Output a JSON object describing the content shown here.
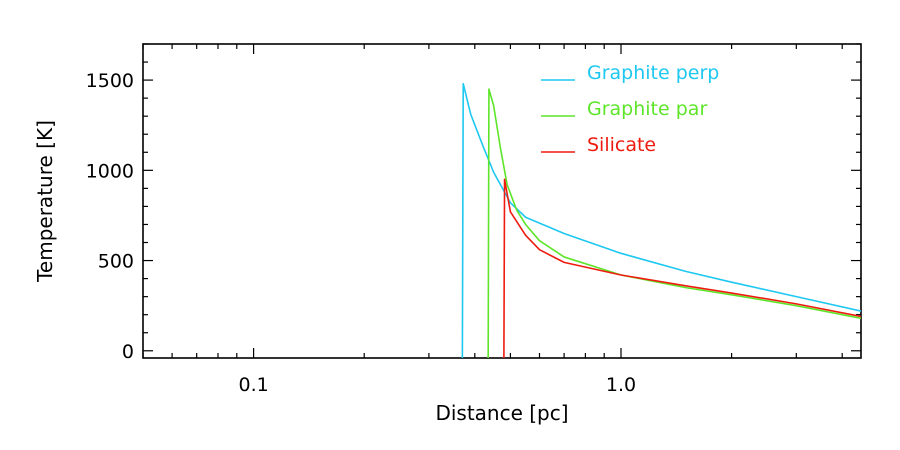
{
  "chart_data": {
    "type": "line",
    "title": "",
    "xlabel": "Distance [pc]",
    "ylabel": "Temperature [K]",
    "xscale": "log",
    "xlim": [
      0.05,
      4.5
    ],
    "ylim": [
      -40,
      1700
    ],
    "xticks": [
      {
        "value": 0.1,
        "label": "0.1"
      },
      {
        "value": 1.0,
        "label": "1.0"
      }
    ],
    "yticks": [
      {
        "value": 0,
        "label": "0"
      },
      {
        "value": 500,
        "label": "500"
      },
      {
        "value": 1000,
        "label": "1000"
      },
      {
        "value": 1500,
        "label": "1500"
      }
    ],
    "legend_position": "top-right",
    "grid": false,
    "series": [
      {
        "name": "Graphite perp",
        "color": "#1ec8f0",
        "points": [
          [
            0.37,
            -40
          ],
          [
            0.372,
            1480
          ],
          [
            0.39,
            1310
          ],
          [
            0.42,
            1140
          ],
          [
            0.45,
            990
          ],
          [
            0.5,
            820
          ],
          [
            0.55,
            740
          ],
          [
            0.7,
            650
          ],
          [
            1.0,
            540
          ],
          [
            1.5,
            440
          ],
          [
            2.0,
            380
          ],
          [
            3.0,
            300
          ],
          [
            4.5,
            220
          ]
        ]
      },
      {
        "name": "Graphite par",
        "color": "#5ee52a",
        "points": [
          [
            0.435,
            -40
          ],
          [
            0.437,
            1450
          ],
          [
            0.45,
            1360
          ],
          [
            0.47,
            1120
          ],
          [
            0.49,
            920
          ],
          [
            0.52,
            780
          ],
          [
            0.55,
            700
          ],
          [
            0.6,
            610
          ],
          [
            0.7,
            520
          ],
          [
            1.0,
            420
          ],
          [
            1.5,
            350
          ],
          [
            2.0,
            310
          ],
          [
            3.0,
            250
          ],
          [
            4.5,
            180
          ]
        ]
      },
      {
        "name": "Silicate",
        "color": "#ee1c0e",
        "points": [
          [
            0.48,
            -40
          ],
          [
            0.482,
            950
          ],
          [
            0.5,
            770
          ],
          [
            0.55,
            640
          ],
          [
            0.6,
            560
          ],
          [
            0.7,
            490
          ],
          [
            1.0,
            420
          ],
          [
            1.5,
            360
          ],
          [
            2.0,
            320
          ],
          [
            3.0,
            260
          ],
          [
            4.5,
            190
          ]
        ]
      }
    ]
  }
}
